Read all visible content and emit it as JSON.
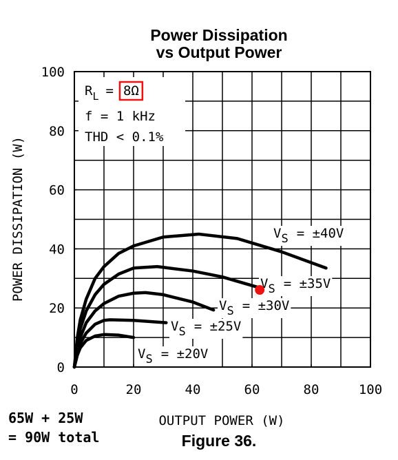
{
  "chart_data": {
    "type": "line",
    "title": [
      "Power Dissipation",
      "vs Output Power"
    ],
    "x_label": "OUTPUT POWER (W)",
    "y_label": "POWER DISSIPATION (W)",
    "xlim": [
      0,
      100
    ],
    "xticks": [
      0,
      20,
      40,
      60,
      80,
      100
    ],
    "ylim": [
      0,
      100
    ],
    "yticks": [
      0,
      20,
      40,
      60,
      80,
      100
    ],
    "grid_step": 10,
    "grid": true,
    "conditions": [
      [
        "R",
        "L",
        "=",
        "8Ω"
      ],
      [
        "f = 1 kHz"
      ],
      [
        "THD < 0.1%"
      ]
    ],
    "series": [
      {
        "name": [
          "V",
          "S",
          "= ±40V"
        ],
        "color": "#000000",
        "x": [
          0,
          1,
          2,
          4,
          7,
          10,
          15,
          20,
          30,
          42,
          55,
          70,
          85
        ],
        "values": [
          0,
          10,
          16,
          23,
          30,
          34,
          38.5,
          41,
          44,
          45,
          43.5,
          39,
          33.5
        ]
      },
      {
        "name": [
          "V",
          "S",
          "= ±35V"
        ],
        "color": "#000000",
        "x": [
          0,
          1,
          2,
          4,
          7,
          10,
          15,
          20,
          28,
          40,
          50,
          62
        ],
        "values": [
          0,
          8,
          13,
          19,
          24.5,
          28,
          31.5,
          33.5,
          34,
          32.5,
          30.5,
          27
        ]
      },
      {
        "name": [
          "V",
          "S",
          "= ±30V"
        ],
        "color": "#000000",
        "x": [
          0,
          1,
          2,
          4,
          7,
          10,
          15,
          20,
          24,
          30,
          40,
          47
        ],
        "values": [
          0,
          6,
          10,
          15,
          19,
          21.5,
          24,
          25,
          25.2,
          24.5,
          22,
          19.3
        ]
      },
      {
        "name": [
          "V",
          "S",
          "= ±25V"
        ],
        "color": "#000000",
        "x": [
          0,
          1,
          2,
          4,
          7,
          10,
          12,
          20,
          31
        ],
        "values": [
          0,
          5,
          8,
          11.5,
          14.5,
          15.8,
          16,
          15.8,
          15
        ]
      },
      {
        "name": [
          "V",
          "S",
          "= ±20V"
        ],
        "color": "#000000",
        "x": [
          0,
          1,
          2,
          4,
          7,
          10,
          15,
          20
        ],
        "values": [
          0,
          4,
          6.5,
          9,
          10.5,
          11,
          10.8,
          10
        ]
      }
    ],
    "highlight_point": {
      "x": 62.6,
      "y": 26.1,
      "color": "#ee1111"
    },
    "note": [
      "65W + 25W",
      "= 90W total"
    ],
    "note_color": "#ee1111",
    "caption": "Figure 36."
  }
}
